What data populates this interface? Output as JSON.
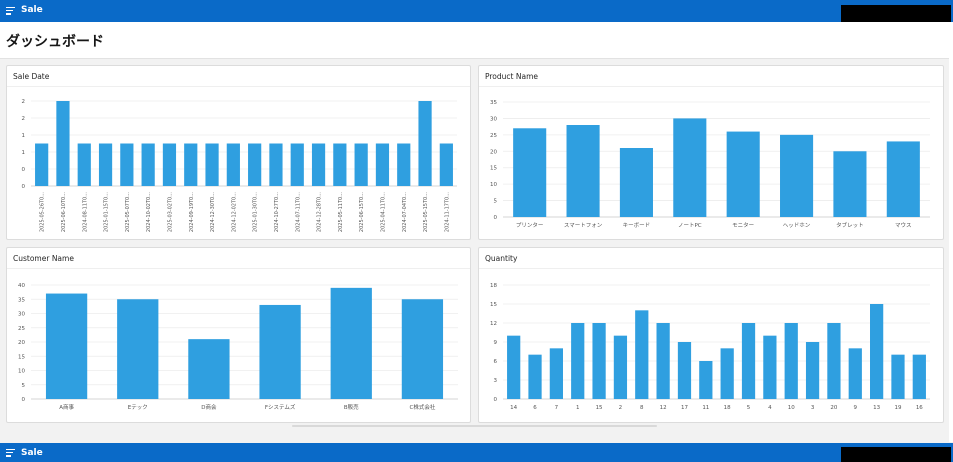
{
  "app": {
    "title": "Sale"
  },
  "page": {
    "title": "ダッシュボード"
  },
  "charts": {
    "sale_date": {
      "title": "Sale Date"
    },
    "product_name": {
      "title": "Product Name"
    },
    "customer_name": {
      "title": "Customer Name"
    },
    "quantity": {
      "title": "Quantity"
    }
  },
  "colors": {
    "bar": "#2f9fe0",
    "topbar": "#0a6ac8",
    "grid": "#ececec",
    "axis": "#c8c8c8",
    "tick": "#555555"
  },
  "chart_data": [
    {
      "type": "bar",
      "title": "Sale Date",
      "categories": [
        "2025-05-26T0...",
        "2025-06-10T0...",
        "2024-08-11T0...",
        "2025-01-15T0...",
        "2025-05-07T0...",
        "2024-10-02T0...",
        "2025-03-02T0...",
        "2024-09-19T0...",
        "2024-12-30T0...",
        "2024-12-02T0...",
        "2025-01-30T0...",
        "2024-10-27T0...",
        "2024-07-11T0...",
        "2024-12-28T0...",
        "2025-05-11T0...",
        "2025-06-15T0...",
        "2025-04-11T0...",
        "2024-07-04T0...",
        "2025-05-15T0...",
        "2024-11-17T0..."
      ],
      "values": [
        1,
        2,
        1,
        1,
        1,
        1,
        1,
        1,
        1,
        1,
        1,
        1,
        1,
        1,
        1,
        1,
        1,
        1,
        2,
        1
      ],
      "yticks": [
        "0",
        "0",
        "1",
        "1",
        "2",
        "2"
      ],
      "ylim": [
        0,
        2
      ]
    },
    {
      "type": "bar",
      "title": "Product Name",
      "categories": [
        "プリンター",
        "スマートフォン",
        "キーボード",
        "ノートPC",
        "モニター",
        "ヘッドホン",
        "タブレット",
        "マウス"
      ],
      "values": [
        27,
        28,
        21,
        30,
        26,
        25,
        20,
        23
      ],
      "yticks": [
        "0",
        "5",
        "10",
        "15",
        "20",
        "25",
        "30",
        "35"
      ],
      "ylim": [
        0,
        35
      ]
    },
    {
      "type": "bar",
      "title": "Customer Name",
      "categories": [
        "A商事",
        "Eテック",
        "D商会",
        "Fシステムズ",
        "B販売",
        "C株式会社"
      ],
      "values": [
        37,
        35,
        21,
        33,
        39,
        35
      ],
      "yticks": [
        "0",
        "5",
        "10",
        "15",
        "20",
        "25",
        "30",
        "35",
        "40"
      ],
      "ylim": [
        0,
        40
      ]
    },
    {
      "type": "bar",
      "title": "Quantity",
      "categories": [
        "14",
        "6",
        "7",
        "1",
        "15",
        "2",
        "8",
        "12",
        "17",
        "11",
        "18",
        "5",
        "4",
        "10",
        "3",
        "20",
        "9",
        "13",
        "19",
        "16"
      ],
      "values": [
        10,
        7,
        8,
        12,
        12,
        10,
        14,
        12,
        9,
        6,
        8,
        12,
        10,
        12,
        9,
        12,
        8,
        15,
        7,
        7
      ],
      "yticks": [
        "0",
        "3",
        "6",
        "9",
        "12",
        "15",
        "18"
      ],
      "ylim": [
        0,
        18
      ]
    }
  ]
}
